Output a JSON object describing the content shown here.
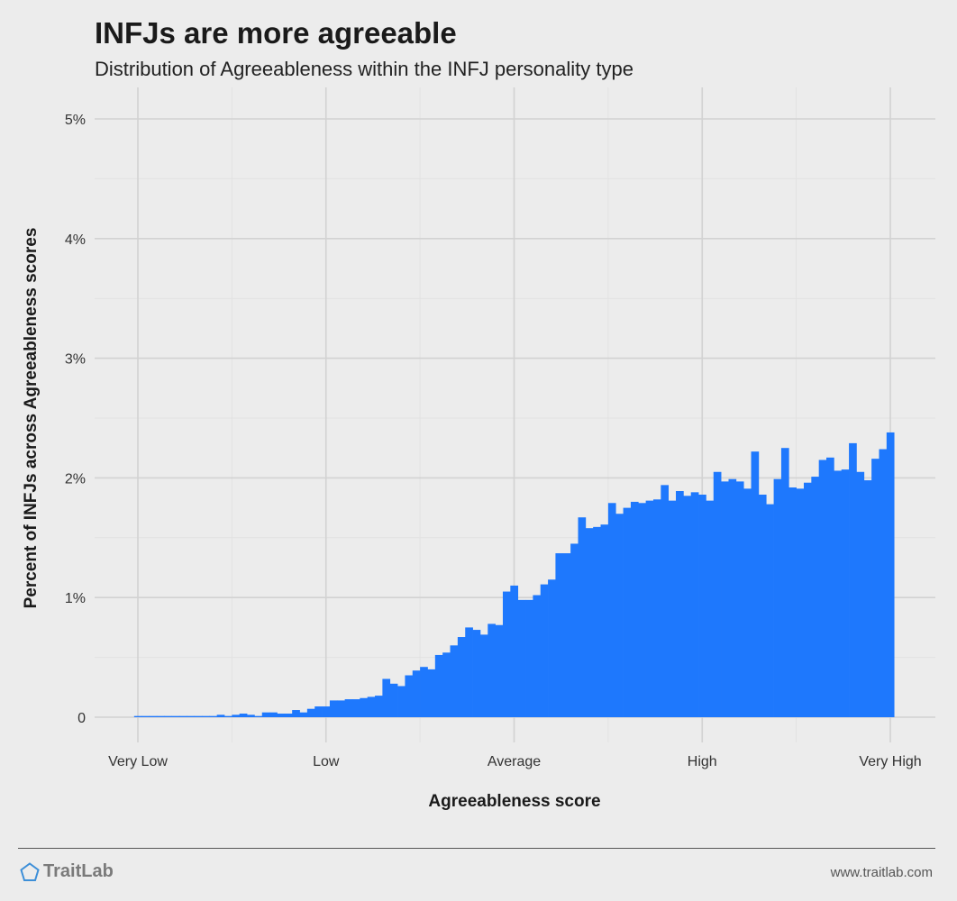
{
  "title": "INFJs are more agreeable",
  "subtitle": "Distribution of Agreeableness within the INFJ personality type",
  "footer": {
    "brand": "TraitLab",
    "site": "www.traitlab.com",
    "brand_color": "#3d8fd8"
  },
  "chart_data": {
    "type": "bar",
    "title": "INFJs are more agreeable",
    "subtitle": "Distribution of Agreeableness within the INFJ personality type",
    "xlabel": "Agreeableness score",
    "ylabel": "Percent of INFJs across Agreeableness scores",
    "bar_color": "#1e78fd",
    "x_ticks": [
      "Very Low",
      "Low",
      "Average",
      "High",
      "Very High"
    ],
    "y_ticks": [
      "0",
      "1%",
      "2%",
      "3%",
      "4%",
      "5%"
    ],
    "ylim": [
      0,
      5
    ],
    "grid": true,
    "values": [
      0.01,
      0.01,
      0.01,
      0.01,
      0.01,
      0.01,
      0.01,
      0.01,
      0.01,
      0.01,
      0.01,
      0.02,
      0.01,
      0.02,
      0.03,
      0.02,
      0.01,
      0.04,
      0.04,
      0.03,
      0.03,
      0.06,
      0.04,
      0.07,
      0.09,
      0.09,
      0.14,
      0.14,
      0.15,
      0.15,
      0.16,
      0.17,
      0.18,
      0.32,
      0.28,
      0.26,
      0.35,
      0.39,
      0.42,
      0.4,
      0.52,
      0.54,
      0.6,
      0.67,
      0.75,
      0.73,
      0.69,
      0.78,
      0.77,
      1.05,
      1.1,
      0.98,
      0.98,
      1.02,
      1.11,
      1.15,
      1.37,
      1.37,
      1.45,
      1.67,
      1.58,
      1.59,
      1.61,
      1.79,
      1.7,
      1.75,
      1.8,
      1.79,
      1.81,
      1.82,
      1.94,
      1.81,
      1.89,
      1.85,
      1.88,
      1.86,
      1.81,
      2.05,
      1.97,
      1.99,
      1.97,
      1.91,
      2.22,
      1.86,
      1.78,
      1.99,
      2.25,
      1.92,
      1.91,
      1.96,
      2.01,
      2.15,
      2.17,
      2.06,
      2.07,
      2.29,
      2.05,
      1.98,
      2.16,
      2.24,
      2.38
    ]
  }
}
